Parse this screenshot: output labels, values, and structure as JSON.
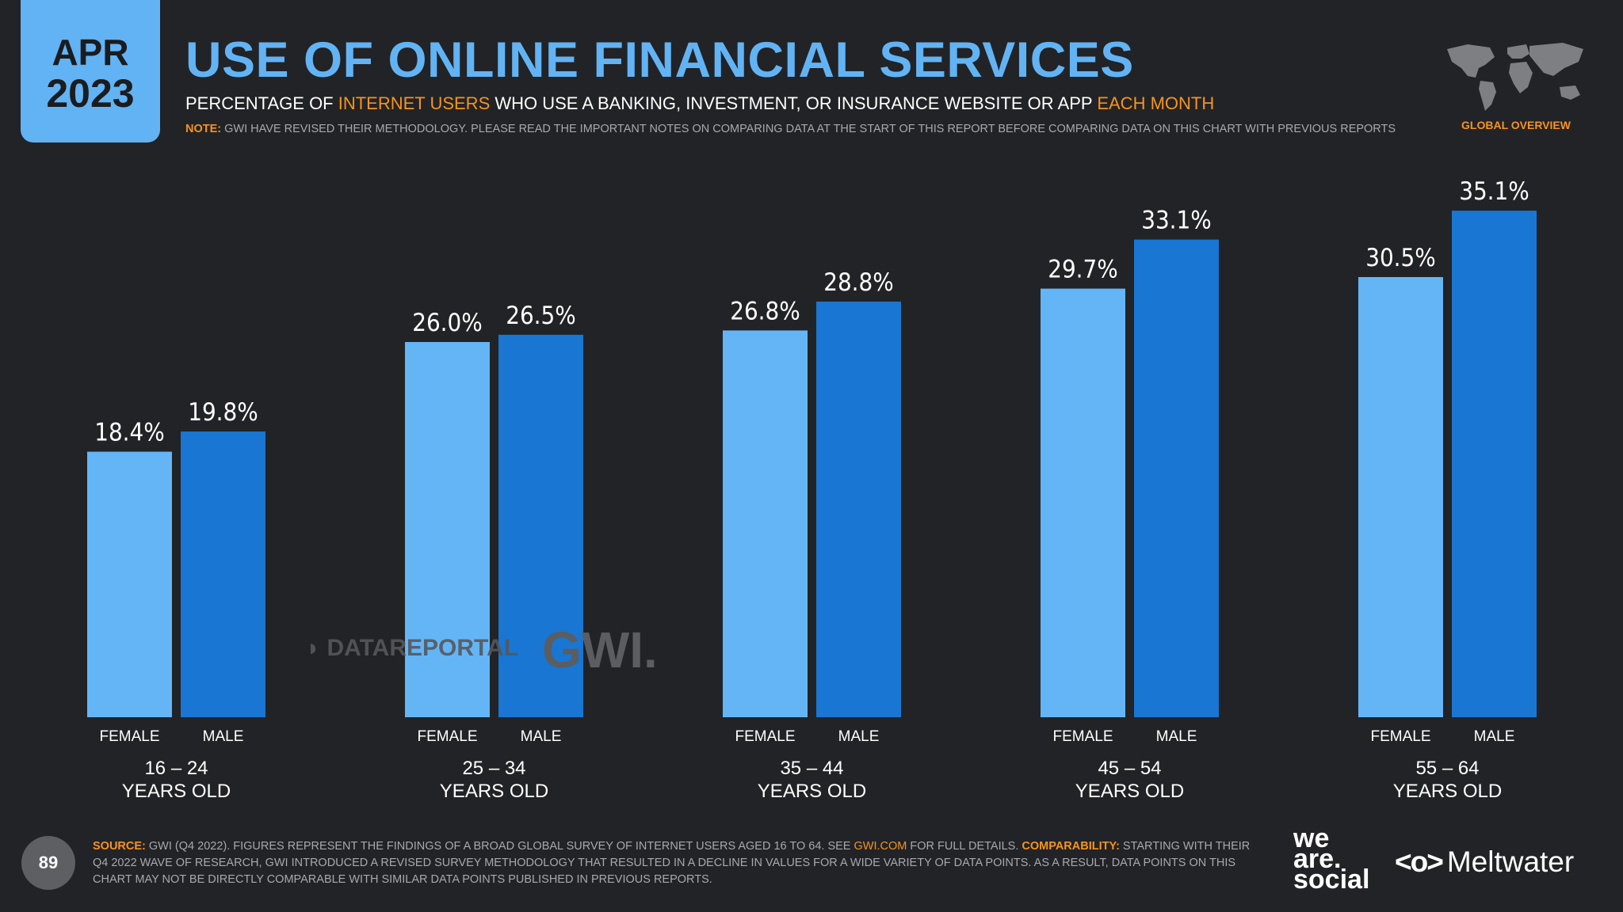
{
  "header": {
    "month": "APR",
    "year": "2023",
    "title": "USE OF ONLINE FINANCIAL SERVICES",
    "subtitle": {
      "part1": "PERCENTAGE OF ",
      "highlight1": "INTERNET USERS",
      "part2": " WHO USE A BANKING, INVESTMENT, OR INSURANCE WEBSITE OR APP ",
      "highlight2": "EACH MONTH"
    },
    "note_label": "NOTE:",
    "note_text": " GWI HAVE REVISED THEIR METHODOLOGY. PLEASE READ THE IMPORTANT NOTES ON COMPARING DATA AT THE START OF THIS REPORT BEFORE COMPARING DATA ON THIS CHART WITH PREVIOUS REPORTS"
  },
  "region_label": "GLOBAL OVERVIEW",
  "chart_data": {
    "type": "bar",
    "title": "USE OF ONLINE FINANCIAL SERVICES",
    "categories": [
      "16 – 24",
      "25 – 34",
      "35 – 44",
      "45 – 54",
      "55 – 64"
    ],
    "category_suffix": "YEARS OLD",
    "series": [
      {
        "name": "FEMALE",
        "color": "#64b5f6",
        "values": [
          18.4,
          26.0,
          26.8,
          29.7,
          30.5
        ]
      },
      {
        "name": "MALE",
        "color": "#1976d2",
        "values": [
          19.8,
          26.5,
          28.8,
          33.1,
          35.1
        ]
      }
    ],
    "value_format": "percent_1dp",
    "ylim": [
      0,
      40
    ],
    "grid": false,
    "xlabel": "",
    "ylabel": ""
  },
  "watermarks": {
    "datareportal": "DATAREPORTAL",
    "gwi": "GWI."
  },
  "footer": {
    "page_number": "89",
    "source_label": "SOURCE:",
    "source_text": " GWI (Q4 2022). FIGURES REPRESENT THE FINDINGS OF A BROAD GLOBAL SURVEY OF INTERNET USERS AGED 16 TO 64. SEE ",
    "source_link": "GWI.COM",
    "source_text2": " FOR FULL DETAILS. ",
    "comparability_label": "COMPARABILITY:",
    "comparability_text": " STARTING WITH THEIR Q4 2022 WAVE OF RESEARCH, GWI INTRODUCED A REVISED SURVEY METHODOLOGY THAT RESULTED IN A DECLINE IN VALUES FOR A WIDE VARIETY OF DATA POINTS. AS A RESULT, DATA POINTS ON THIS CHART MAY NOT BE DIRECTLY COMPARABLE WITH SIMILAR DATA POINTS PUBLISHED IN PREVIOUS REPORTS."
  },
  "logos": {
    "we_are_social": [
      "we",
      "are.",
      "social"
    ],
    "meltwater_icon": "<o>",
    "meltwater": "Meltwater"
  }
}
